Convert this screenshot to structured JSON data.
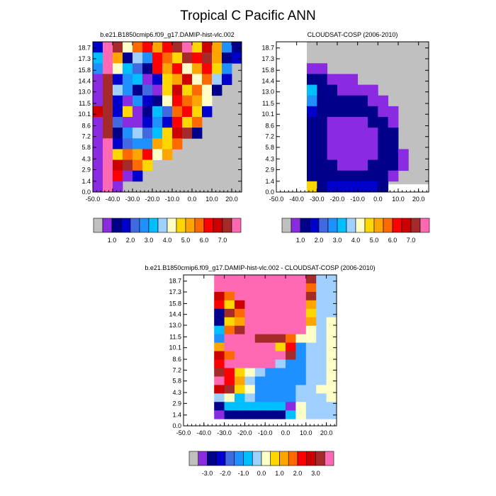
{
  "title": "Tropical C Pacific ANN",
  "colors": {
    "seq": [
      "#c0c0c0",
      "#8a2be2",
      "#00008b",
      "#0000cd",
      "#4169e1",
      "#1e90ff",
      "#00bfff",
      "#a0d0ff",
      "#ffffc8",
      "#ffd700",
      "#ffa500",
      "#ff6a00",
      "#ff0000",
      "#cc0000",
      "#a52a2a",
      "#ff69b4"
    ],
    "diff": [
      "#c0c0c0",
      "#8a2be2",
      "#00008b",
      "#0000cd",
      "#4169e1",
      "#1e90ff",
      "#00bfff",
      "#a0d0ff",
      "#ffffc8",
      "#ffd700",
      "#ffa500",
      "#ff6a00",
      "#ff0000",
      "#cc0000",
      "#a52a2a",
      "#ff69b4"
    ]
  },
  "chart_data": [
    {
      "type": "heatmap",
      "title": "b.e21.B1850cmip6.f09_g17.DAMIP-hist-vlc.002",
      "x_tick_labels": [
        "-50.0",
        "-40.0",
        "-30.0",
        "-20.0",
        "-10.0",
        "0.0",
        "10.0",
        "20.0"
      ],
      "y_tick_labels": [
        "0.0",
        "1.4",
        "2.9",
        "4.3",
        "5.8",
        "7.2",
        "8.6",
        "10.1",
        "11.5",
        "13.0",
        "14.4",
        "15.8",
        "17.3",
        "18.7"
      ],
      "colorbar_labels": [
        "1.0",
        "2.0",
        "3.0",
        "4.0",
        "5.0",
        "6.0",
        "7.0"
      ],
      "xlim": [
        -50,
        25
      ],
      "ylim": [
        0,
        19.5
      ],
      "values": [
        [
          3,
          15,
          14,
          8,
          11,
          12,
          10,
          12,
          14,
          15,
          9,
          13,
          10,
          5,
          2
        ],
        [
          6,
          15,
          10,
          2,
          7,
          5,
          12,
          11,
          9,
          14,
          12,
          14,
          10,
          2,
          3
        ],
        [
          5,
          15,
          8,
          6,
          4,
          2,
          12,
          10,
          12,
          8,
          10,
          12,
          9,
          5,
          null
        ],
        [
          1,
          14,
          3,
          5,
          6,
          1,
          3,
          9,
          10,
          13,
          8,
          11,
          7,
          3,
          null
        ],
        [
          1,
          14,
          7,
          5,
          2,
          4,
          1,
          9,
          13,
          9,
          11,
          8,
          2,
          null,
          null
        ],
        [
          1,
          14,
          3,
          1,
          5,
          3,
          2,
          8,
          12,
          11,
          10,
          8,
          null,
          null,
          null
        ],
        [
          13,
          14,
          3,
          9,
          1,
          2,
          6,
          4,
          11,
          12,
          9,
          3,
          null,
          null,
          null
        ],
        [
          1,
          14,
          4,
          1,
          1,
          3,
          5,
          3,
          12,
          9,
          11,
          null,
          null,
          null,
          null
        ],
        [
          1,
          14,
          2,
          5,
          7,
          4,
          6,
          9,
          13,
          14,
          2,
          null,
          null,
          null,
          null
        ],
        [
          1,
          15,
          3,
          4,
          5,
          5,
          10,
          9,
          11,
          null,
          null,
          null,
          null,
          null,
          null
        ],
        [
          1,
          15,
          9,
          11,
          10,
          12,
          8,
          10,
          null,
          null,
          null,
          null,
          null,
          null,
          null
        ],
        [
          1,
          15,
          13,
          14,
          11,
          9,
          null,
          null,
          null,
          null,
          null,
          null,
          null,
          null,
          null
        ],
        [
          1,
          15,
          12,
          1,
          3,
          null,
          null,
          null,
          null,
          null,
          null,
          null,
          null,
          null,
          null
        ],
        [
          1,
          15,
          1,
          null,
          null,
          null,
          null,
          null,
          null,
          null,
          null,
          null,
          null,
          null,
          null
        ]
      ]
    },
    {
      "type": "heatmap",
      "title": "CLOUDSAT-COSP (2006-2010)",
      "x_tick_labels": [
        "-50.0",
        "-40.0",
        "-30.0",
        "-20.0",
        "-10.0",
        "0.0",
        "10.0",
        "20.0"
      ],
      "y_tick_labels": [
        "0.0",
        "1.4",
        "2.9",
        "4.3",
        "5.8",
        "7.2",
        "8.6",
        "10.1",
        "11.5",
        "13.0",
        "14.4",
        "15.8",
        "17.3",
        "18.7"
      ],
      "colorbar_labels": [
        "1.0",
        "2.0",
        "3.0",
        "4.0",
        "5.0",
        "6.0",
        "7.0"
      ],
      "xlim": [
        -50,
        25
      ],
      "ylim": [
        0,
        19.5
      ],
      "values": [
        [
          null,
          null,
          null,
          null,
          null,
          null,
          null,
          null,
          null,
          null,
          null,
          null,
          null,
          null,
          null
        ],
        [
          null,
          null,
          null,
          null,
          null,
          null,
          null,
          null,
          null,
          null,
          null,
          null,
          null,
          null,
          null
        ],
        [
          null,
          null,
          null,
          1,
          1,
          null,
          null,
          null,
          null,
          null,
          null,
          null,
          null,
          null,
          null
        ],
        [
          null,
          null,
          null,
          2,
          2,
          1,
          1,
          1,
          null,
          null,
          null,
          null,
          null,
          null,
          null
        ],
        [
          null,
          null,
          null,
          6,
          2,
          2,
          1,
          1,
          1,
          1,
          null,
          null,
          null,
          null,
          null
        ],
        [
          null,
          null,
          null,
          5,
          2,
          2,
          2,
          2,
          2,
          1,
          1,
          null,
          null,
          null,
          null
        ],
        [
          null,
          null,
          null,
          3,
          2,
          2,
          2,
          2,
          2,
          2,
          1,
          1,
          null,
          null,
          null
        ],
        [
          null,
          null,
          null,
          2,
          2,
          1,
          1,
          1,
          1,
          2,
          2,
          1,
          null,
          null,
          null
        ],
        [
          null,
          null,
          null,
          2,
          2,
          1,
          1,
          1,
          1,
          1,
          2,
          2,
          null,
          null,
          null
        ],
        [
          null,
          null,
          null,
          2,
          2,
          1,
          1,
          1,
          1,
          1,
          2,
          2,
          null,
          null,
          null
        ],
        [
          null,
          null,
          null,
          2,
          2,
          1,
          1,
          1,
          1,
          1,
          2,
          2,
          1,
          null,
          null
        ],
        [
          null,
          null,
          null,
          2,
          2,
          2,
          1,
          1,
          1,
          2,
          2,
          2,
          1,
          null,
          null
        ],
        [
          null,
          null,
          null,
          2,
          2,
          2,
          2,
          2,
          2,
          2,
          2,
          1,
          null,
          null,
          null
        ],
        [
          null,
          null,
          null,
          9,
          2,
          3,
          3,
          3,
          3,
          3,
          2,
          null,
          null,
          null,
          null
        ]
      ]
    },
    {
      "type": "heatmap",
      "title": "b.e21.B1850cmip6.f09_g17.DAMIP-hist-vlc.002 - CLOUDSAT-COSP (2006-2010)",
      "x_tick_labels": [
        "-50.0",
        "-40.0",
        "-30.0",
        "-20.0",
        "-10.0",
        "0.0",
        "10.0",
        "20.0"
      ],
      "y_tick_labels": [
        "0.0",
        "1.4",
        "2.9",
        "4.3",
        "5.8",
        "7.2",
        "8.6",
        "10.1",
        "11.5",
        "13.0",
        "14.4",
        "15.8",
        "17.3",
        "18.7"
      ],
      "colorbar_labels": [
        "-3.0",
        "-2.0",
        "-1.0",
        "0.0",
        "1.0",
        "2.0",
        "3.0"
      ],
      "xlim": [
        -50,
        25
      ],
      "ylim": [
        0,
        19.5
      ],
      "values": [
        [
          null,
          null,
          null,
          15,
          15,
          15,
          15,
          15,
          15,
          15,
          15,
          15,
          14,
          7,
          7
        ],
        [
          null,
          null,
          null,
          15,
          15,
          15,
          15,
          15,
          15,
          15,
          15,
          15,
          11,
          7,
          7
        ],
        [
          null,
          null,
          null,
          13,
          11,
          15,
          15,
          15,
          15,
          15,
          15,
          15,
          14,
          7,
          7
        ],
        [
          null,
          null,
          null,
          12,
          9,
          13,
          15,
          15,
          15,
          15,
          15,
          15,
          10,
          7,
          7
        ],
        [
          null,
          null,
          null,
          2,
          14,
          11,
          15,
          15,
          15,
          15,
          15,
          15,
          9,
          7,
          7
        ],
        [
          null,
          null,
          null,
          2,
          9,
          10,
          15,
          15,
          15,
          15,
          15,
          15,
          10,
          7,
          8
        ],
        [
          null,
          null,
          null,
          6,
          11,
          14,
          15,
          15,
          15,
          15,
          15,
          15,
          8,
          7,
          8
        ],
        [
          null,
          null,
          null,
          5,
          15,
          15,
          15,
          14,
          14,
          14,
          11,
          8,
          8,
          7,
          8
        ],
        [
          null,
          null,
          null,
          10,
          15,
          15,
          15,
          15,
          15,
          9,
          12,
          5,
          7,
          7,
          8
        ],
        [
          null,
          null,
          null,
          13,
          11,
          15,
          15,
          15,
          15,
          15,
          14,
          5,
          7,
          7,
          8
        ],
        [
          null,
          null,
          null,
          12,
          15,
          15,
          15,
          15,
          15,
          7,
          5,
          5,
          7,
          7,
          8
        ],
        [
          null,
          null,
          null,
          14,
          12,
          9,
          8,
          7,
          5,
          5,
          5,
          5,
          7,
          7,
          8
        ],
        [
          null,
          null,
          null,
          15,
          12,
          10,
          7,
          5,
          5,
          5,
          5,
          5,
          7,
          7,
          8
        ],
        [
          null,
          null,
          null,
          13,
          14,
          9,
          8,
          5,
          5,
          5,
          5,
          7,
          7,
          8,
          8
        ],
        [
          null,
          null,
          null,
          7,
          8,
          6,
          7,
          5,
          5,
          5,
          5,
          7,
          7,
          7,
          8
        ],
        [
          null,
          null,
          null,
          2,
          6,
          6,
          6,
          6,
          6,
          6,
          1,
          8,
          7,
          7,
          7
        ],
        [
          null,
          null,
          null,
          1,
          2,
          2,
          2,
          2,
          2,
          2,
          6,
          8,
          7,
          7,
          7
        ]
      ]
    }
  ]
}
